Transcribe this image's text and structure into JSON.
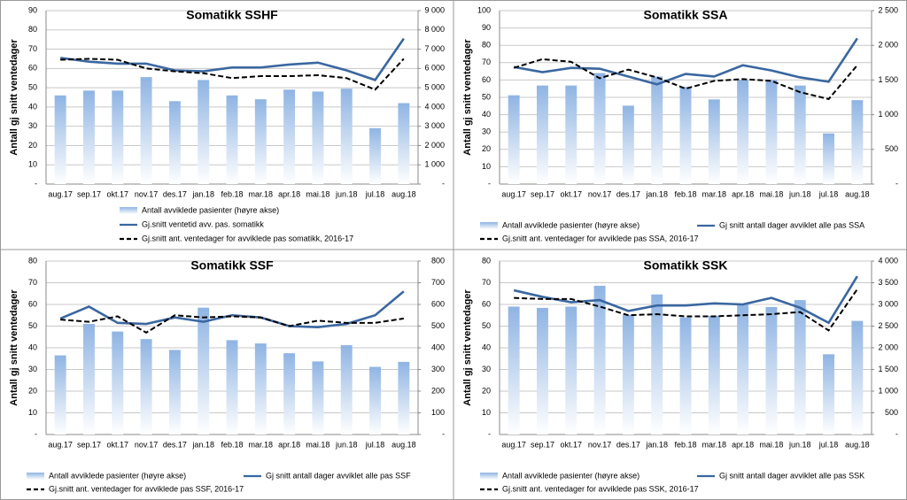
{
  "chart_data": [
    {
      "type": "combo",
      "title": "Somatikk SSHF",
      "y_label": "Antall gj snitt ventedager",
      "categories": [
        "aug.17",
        "sep.17",
        "okt.17",
        "nov.17",
        "des.17",
        "jan.18",
        "feb.18",
        "mar.18",
        "apr.18",
        "mai.18",
        "jun.18",
        "jul.18",
        "aug.18"
      ],
      "ylim": [
        0,
        90
      ],
      "yticks": [
        {
          "value": 0,
          "label": "-"
        },
        10,
        20,
        30,
        40,
        50,
        60,
        70,
        80,
        90
      ],
      "y2lim": [
        0,
        9000
      ],
      "y2ticks": [
        {
          "value": 0,
          "label": "-"
        },
        {
          "value": 1000,
          "label": "1 000"
        },
        {
          "value": 2000,
          "label": "2 000"
        },
        {
          "value": 3000,
          "label": "3 000"
        },
        {
          "value": 4000,
          "label": "4 000"
        },
        {
          "value": 5000,
          "label": "5 000"
        },
        {
          "value": 6000,
          "label": "6 000"
        },
        {
          "value": 7000,
          "label": "7 000"
        },
        {
          "value": 8000,
          "label": "8 000"
        },
        {
          "value": 9000,
          "label": "9 000"
        }
      ],
      "grid": true,
      "series": [
        {
          "name": "Antall avviklede pasienter (høyre akse)",
          "type": "bar",
          "axis": "y2",
          "color": "#8fb4e3",
          "values": [
            4600,
            4850,
            4850,
            5550,
            4300,
            5400,
            4600,
            4400,
            4900,
            4800,
            4950,
            2900,
            4200
          ]
        },
        {
          "name": "Gj.snitt ventetid avv. pas. somatikk",
          "type": "line",
          "axis": "y",
          "color": "#3a67a0",
          "dashed": false,
          "values": [
            65.5,
            63.5,
            62.5,
            62.5,
            59,
            58.5,
            60.5,
            60.5,
            62,
            63,
            59,
            54,
            75.5
          ]
        },
        {
          "name": "Gj.snitt ant. ventedager for avviklede pas somatikk, 2016-17",
          "type": "line",
          "axis": "y",
          "color": "#000000",
          "dashed": true,
          "values": [
            64.5,
            65,
            64.5,
            60,
            58.5,
            57.5,
            55,
            56,
            56,
            56.5,
            55,
            49,
            65
          ]
        }
      ]
    },
    {
      "type": "combo",
      "title": "Somatikk SSA",
      "y_label": "Antall gj snitt ventedager",
      "categories": [
        "aug.17",
        "sep.17",
        "okt.17",
        "nov.17",
        "des.17",
        "jan.18",
        "feb.18",
        "mar.18",
        "apr.18",
        "mai.18",
        "jun.18",
        "jul.18",
        "aug.18"
      ],
      "ylim": [
        0,
        100
      ],
      "yticks": [
        {
          "value": 0,
          "label": "-"
        },
        10,
        20,
        30,
        40,
        50,
        60,
        70,
        80,
        90,
        100
      ],
      "y2lim": [
        0,
        2500
      ],
      "y2ticks": [
        {
          "value": 0,
          "label": "-"
        },
        500,
        {
          "value": 1000,
          "label": "1 000"
        },
        {
          "value": 1500,
          "label": "1 500"
        },
        {
          "value": 2000,
          "label": "2 000"
        },
        {
          "value": 2500,
          "label": "2 500"
        }
      ],
      "grid": true,
      "series": [
        {
          "name": "Antall avviklede pasienter (høyre akse)",
          "type": "bar",
          "axis": "y2",
          "color": "#8fb4e3",
          "values": [
            1280,
            1420,
            1420,
            1600,
            1130,
            1550,
            1400,
            1220,
            1500,
            1500,
            1420,
            730,
            1210
          ]
        },
        {
          "name": "Gj snitt antall dager avviklet alle pas SSA",
          "type": "line",
          "axis": "y",
          "color": "#3a67a0",
          "dashed": false,
          "values": [
            67.5,
            64.5,
            67,
            66.5,
            62,
            57.5,
            63.5,
            62,
            68.5,
            65.5,
            61.5,
            59,
            84
          ]
        },
        {
          "name": "Gj.snitt ant. ventedager for avviklede pas SSA, 2016-17",
          "type": "line",
          "axis": "y",
          "color": "#000000",
          "dashed": true,
          "values": [
            67,
            72,
            70.5,
            61,
            66,
            61.5,
            55,
            59.5,
            60.5,
            59.5,
            53,
            49,
            68.5
          ]
        }
      ]
    },
    {
      "type": "combo",
      "title": "Somatikk SSF",
      "y_label": "Antall gj snitt ventedager",
      "categories": [
        "aug.17",
        "sep.17",
        "okt.17",
        "nov.17",
        "des.17",
        "jan.18",
        "feb.18",
        "mar.18",
        "apr.18",
        "mai.18",
        "jun.18",
        "jul.18",
        "aug.18"
      ],
      "ylim": [
        0,
        80
      ],
      "yticks": [
        {
          "value": 0,
          "label": "-"
        },
        10,
        20,
        30,
        40,
        50,
        60,
        70,
        80
      ],
      "y2lim": [
        0,
        800
      ],
      "y2ticks": [
        {
          "value": 0,
          "label": "-"
        },
        100,
        200,
        300,
        400,
        500,
        600,
        700,
        800
      ],
      "grid": true,
      "series": [
        {
          "name": "Antall avviklede pasienter (høyre akse)",
          "type": "bar",
          "axis": "y2",
          "color": "#8fb4e3",
          "values": [
            365,
            510,
            475,
            440,
            390,
            585,
            435,
            420,
            375,
            337,
            412,
            312,
            335
          ]
        },
        {
          "name": "Gj snitt antall dager avviklet alle pas SSF",
          "type": "line",
          "axis": "y",
          "color": "#3a67a0",
          "dashed": false,
          "values": [
            53.5,
            59,
            51.5,
            51,
            54,
            52,
            55,
            54,
            50,
            49.5,
            51,
            55,
            66
          ]
        },
        {
          "name": "Gj.snitt ant. ventedager for avviklede pas SSF, 2016-17",
          "type": "line",
          "axis": "y",
          "color": "#000000",
          "dashed": true,
          "values": [
            53,
            52,
            54.5,
            47,
            55,
            54,
            54.5,
            54,
            50,
            52.5,
            51.5,
            51.5,
            53.5
          ]
        }
      ]
    },
    {
      "type": "combo",
      "title": "Somatikk SSK",
      "y_label": "Antall gj snitt ventedager",
      "categories": [
        "aug.17",
        "sep.17",
        "okt.17",
        "nov.17",
        "des.17",
        "jan.18",
        "feb.18",
        "mar.18",
        "apr.18",
        "mai.18",
        "jun.18",
        "jul.18",
        "aug.18"
      ],
      "ylim": [
        0,
        80
      ],
      "yticks": [
        {
          "value": 0,
          "label": "-"
        },
        10,
        20,
        30,
        40,
        50,
        60,
        70,
        80
      ],
      "y2lim": [
        0,
        4000
      ],
      "y2ticks": [
        {
          "value": 0,
          "label": "-"
        },
        500,
        {
          "value": 1000,
          "label": "1 000"
        },
        {
          "value": 1500,
          "label": "1 500"
        },
        {
          "value": 2000,
          "label": "2 000"
        },
        {
          "value": 2500,
          "label": "2 500"
        },
        {
          "value": 3000,
          "label": "3 000"
        },
        {
          "value": 3500,
          "label": "3 500"
        },
        {
          "value": 4000,
          "label": "4 000"
        }
      ],
      "grid": true,
      "series": [
        {
          "name": "Antall avviklede pasienter (høyre akse)",
          "type": "bar",
          "axis": "y2",
          "color": "#8fb4e3",
          "values": [
            2950,
            2920,
            2950,
            3430,
            2760,
            3230,
            2700,
            2740,
            3000,
            2940,
            3100,
            1850,
            2620
          ]
        },
        {
          "name": "Gj snitt antall dager avviklet alle pas SSK",
          "type": "line",
          "axis": "y",
          "color": "#3a67a0",
          "dashed": false,
          "values": [
            66.5,
            63.5,
            61,
            62,
            57,
            59.5,
            59.5,
            60.5,
            60,
            63,
            58.5,
            51.5,
            73
          ]
        },
        {
          "name": "Gj.snitt ant. ventedager for avviklede pas SSK, 2016-17",
          "type": "line",
          "axis": "y",
          "color": "#000000",
          "dashed": true,
          "values": [
            63,
            62.5,
            62.5,
            59,
            55,
            55.5,
            54.5,
            54.5,
            55,
            55.5,
            56.5,
            48,
            67
          ]
        }
      ]
    }
  ]
}
